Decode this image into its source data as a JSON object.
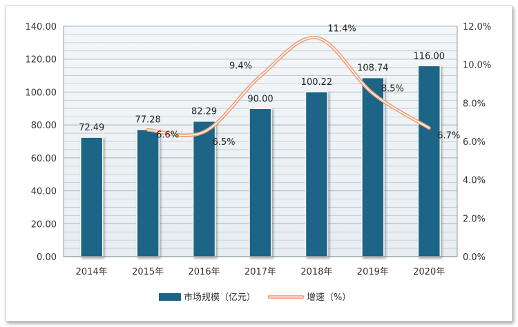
{
  "chart_data": {
    "type": "bar",
    "categories": [
      "2014年",
      "2015年",
      "2016年",
      "2017年",
      "2018年",
      "2019年",
      "2020年"
    ],
    "series": [
      {
        "name": "市场规模（亿元）",
        "type": "bar",
        "axis": "left",
        "values": [
          72.49,
          77.28,
          82.29,
          90.0,
          100.22,
          108.74,
          116.0
        ],
        "labels": [
          "72.49",
          "77.28",
          "82.29",
          "90.00",
          "100.22",
          "108.74",
          "116.00"
        ],
        "color": "#1b6586"
      },
      {
        "name": "增速（%）",
        "type": "line",
        "axis": "right",
        "values": [
          null,
          6.6,
          6.5,
          9.4,
          11.4,
          8.5,
          6.7
        ],
        "labels": [
          "",
          "6.6%",
          "6.5%",
          "9.4%",
          "11.4%",
          "8.5%",
          "6.7%"
        ],
        "color": "#f0a27a"
      }
    ],
    "y_left": {
      "ylim": [
        0,
        140
      ],
      "ticks": [
        "0.00",
        "20.00",
        "40.00",
        "60.00",
        "80.00",
        "100.00",
        "120.00",
        "140.00"
      ]
    },
    "y_right": {
      "ylim": [
        0,
        12
      ],
      "ticks": [
        "0.0%",
        "2.0%",
        "4.0%",
        "6.0%",
        "8.0%",
        "10.0%",
        "12.0%"
      ]
    },
    "grid": true,
    "legend": {
      "placement": "bottom"
    }
  }
}
